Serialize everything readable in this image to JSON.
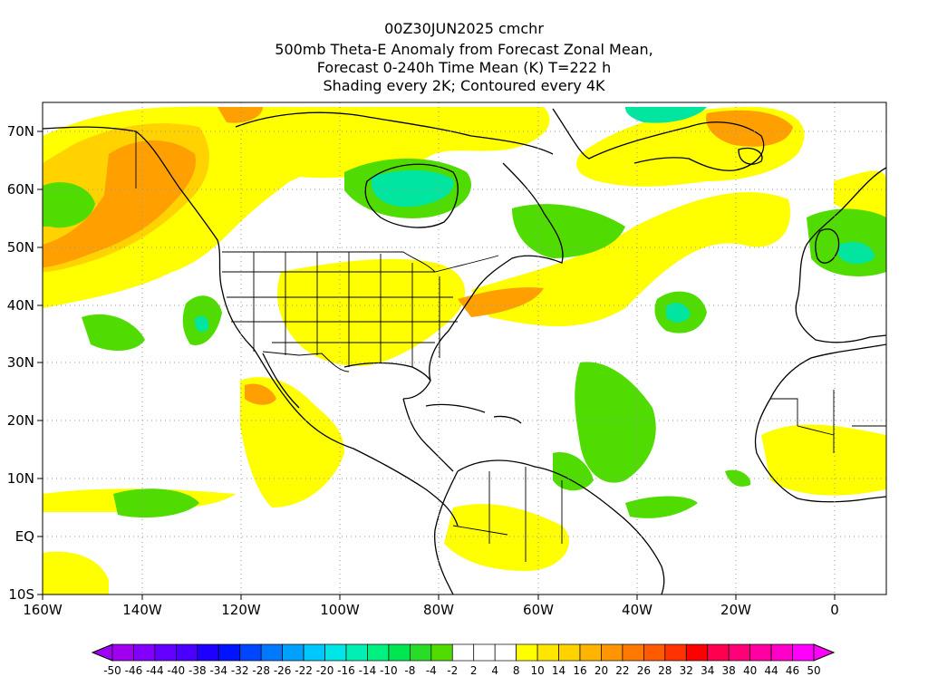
{
  "title": {
    "line1": "00Z30JUN2025 cmchr",
    "line2": "500mb Theta-E Anomaly from Forecast Zonal Mean,",
    "line3": "Forecast 0-240h Time Mean (K) T=222 h",
    "line4": "Shading every 2K; Contoured every 4K"
  },
  "axes": {
    "lon_labels": [
      "160W",
      "140W",
      "120W",
      "100W",
      "80W",
      "60W",
      "40W",
      "20W",
      "0"
    ],
    "lat_labels": [
      "70N",
      "60N",
      "50N",
      "40N",
      "30N",
      "20N",
      "10N",
      "EQ",
      "10S"
    ]
  },
  "colorbar": {
    "labels": [
      "-50",
      "-46",
      "-44",
      "-40",
      "-38",
      "-34",
      "-32",
      "-28",
      "-26",
      "-22",
      "-20",
      "-16",
      "-14",
      "-10",
      "-8",
      "-4",
      "-2",
      "2",
      "4",
      "8",
      "10",
      "14",
      "16",
      "20",
      "22",
      "26",
      "28",
      "32",
      "34",
      "38",
      "40",
      "44",
      "46",
      "50"
    ],
    "colors": [
      "#a000f0",
      "#8200ff",
      "#6400ff",
      "#4b00ff",
      "#1e00ff",
      "#0014ff",
      "#0046ff",
      "#0078ff",
      "#00a0ff",
      "#00c8ff",
      "#00e6e6",
      "#00f0b4",
      "#00f082",
      "#00e650",
      "#28dc28",
      "#50dc00",
      "#ffffff",
      "#ffffff",
      "#ffffff",
      "#ffff00",
      "#ffe600",
      "#ffd200",
      "#ffb400",
      "#ff9600",
      "#ff7800",
      "#ff5a00",
      "#ff3200",
      "#ff0000",
      "#ff0050",
      "#ff0078",
      "#ff00a0",
      "#ff00c8",
      "#ff00ff"
    ]
  },
  "colors": {
    "yellow": "#ffff00",
    "gold": "#ffd200",
    "orange": "#ffa000",
    "dark_orange": "#ff8200",
    "green": "#50dc00",
    "light_green": "#32e632",
    "teal": "#00e6a0",
    "cyan_green": "#00d2c8",
    "coast": "#000000",
    "grid": "#999999"
  }
}
